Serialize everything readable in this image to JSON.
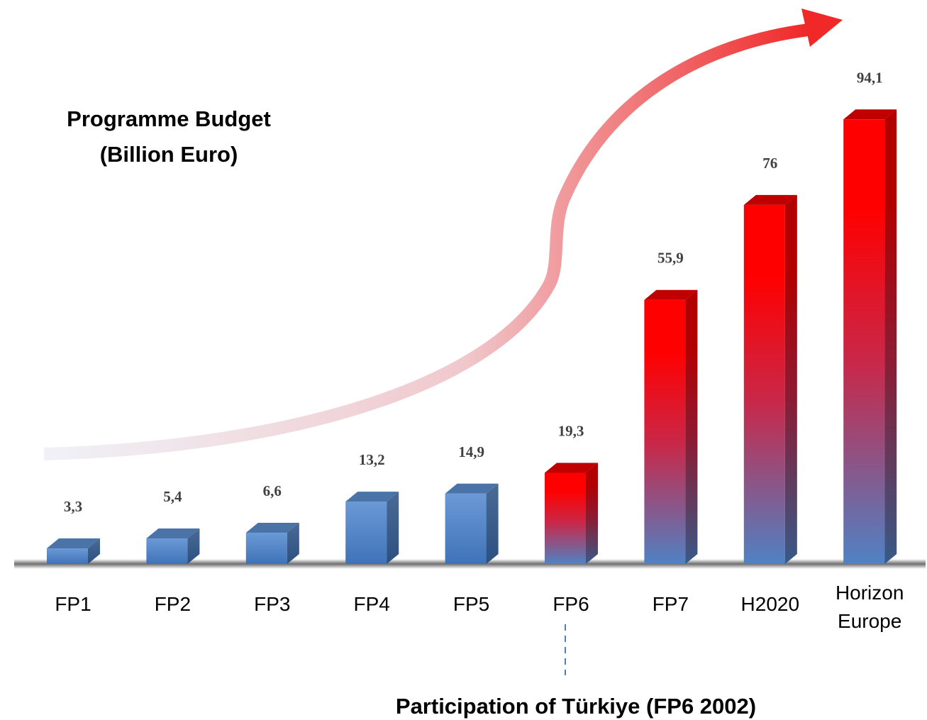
{
  "chart_data": {
    "type": "bar3d",
    "title": "Programme Budget",
    "subtitle": "(Billion Euro)",
    "categories": [
      "FP1",
      "FP2",
      "FP3",
      "FP4",
      "FP5",
      "FP6",
      "FP7",
      "H2020",
      "Horizon Europe"
    ],
    "values": [
      3.3,
      5.4,
      6.6,
      13.2,
      14.9,
      19.3,
      55.9,
      76,
      94.1
    ],
    "value_labels": [
      "3,3",
      "5,4",
      "6,6",
      "13,2",
      "14,9",
      "19,3",
      "55,9",
      "76",
      "94,1"
    ],
    "colors": [
      "#4a7fc4",
      "#4a7fc4",
      "#4a7fc4",
      "#4a7fc4",
      "#4a7fc4",
      "#ff0000",
      "#ff0000",
      "#ff0000",
      "#ff0000"
    ],
    "ylim": [
      0,
      100
    ],
    "annotation": "Participation of Türkiye (FP6 2002)"
  }
}
